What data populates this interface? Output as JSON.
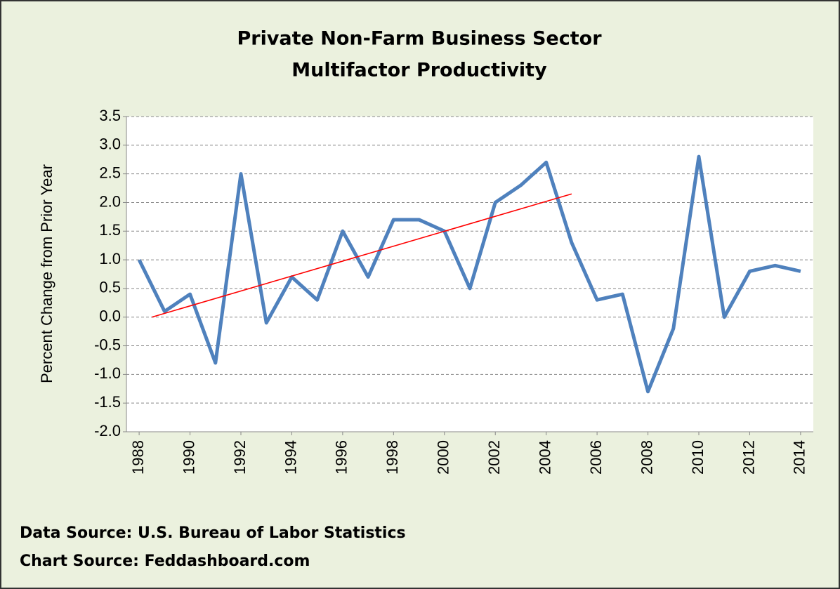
{
  "chart_data": {
    "type": "line",
    "title": [
      "Private Non-Farm Business Sector",
      "Multifactor Productivity"
    ],
    "y_label": "Percent Change from Prior Year",
    "x": [
      1988,
      1989,
      1990,
      1991,
      1992,
      1993,
      1994,
      1995,
      1996,
      1997,
      1998,
      1999,
      2000,
      2001,
      2002,
      2003,
      2004,
      2005,
      2006,
      2007,
      2008,
      2009,
      2010,
      2011,
      2012,
      2013,
      2014
    ],
    "series": [
      {
        "color": "#4f81bd",
        "values": [
          1.0,
          0.1,
          0.4,
          -0.8,
          2.5,
          -0.1,
          0.7,
          0.3,
          1.5,
          0.7,
          1.7,
          1.7,
          1.5,
          0.5,
          2.0,
          2.3,
          2.7,
          1.3,
          0.3,
          0.4,
          -1.3,
          -0.2,
          2.8,
          0.0,
          0.8,
          0.9,
          0.8
        ]
      }
    ],
    "trend_line": {
      "color": "#ff0000",
      "x": [
        1988.5,
        2005
      ],
      "values": [
        0.0,
        2.15
      ]
    },
    "xlim": [
      1987.5,
      2014.5
    ],
    "xticks": [
      1988,
      1990,
      1992,
      1994,
      1996,
      1998,
      2000,
      2002,
      2004,
      2006,
      2008,
      2010,
      2012,
      2014
    ],
    "ylim": [
      -2,
      3.5
    ],
    "yticks": [
      {
        "value": -2,
        "label": "-2.0"
      },
      -1.5,
      {
        "value": -1,
        "label": "-1.0"
      },
      -0.5,
      {
        "value": 0,
        "label": "0.0"
      },
      0.5,
      {
        "value": 1,
        "label": "1.0"
      },
      1.5,
      {
        "value": 2,
        "label": "2.0"
      },
      2.5,
      {
        "value": 3,
        "label": "3.0"
      },
      3.5
    ],
    "grid": true,
    "notes": [
      "Data Source: U.S. Bureau of Labor Statistics",
      "Chart Source: Feddashboard.com"
    ]
  }
}
